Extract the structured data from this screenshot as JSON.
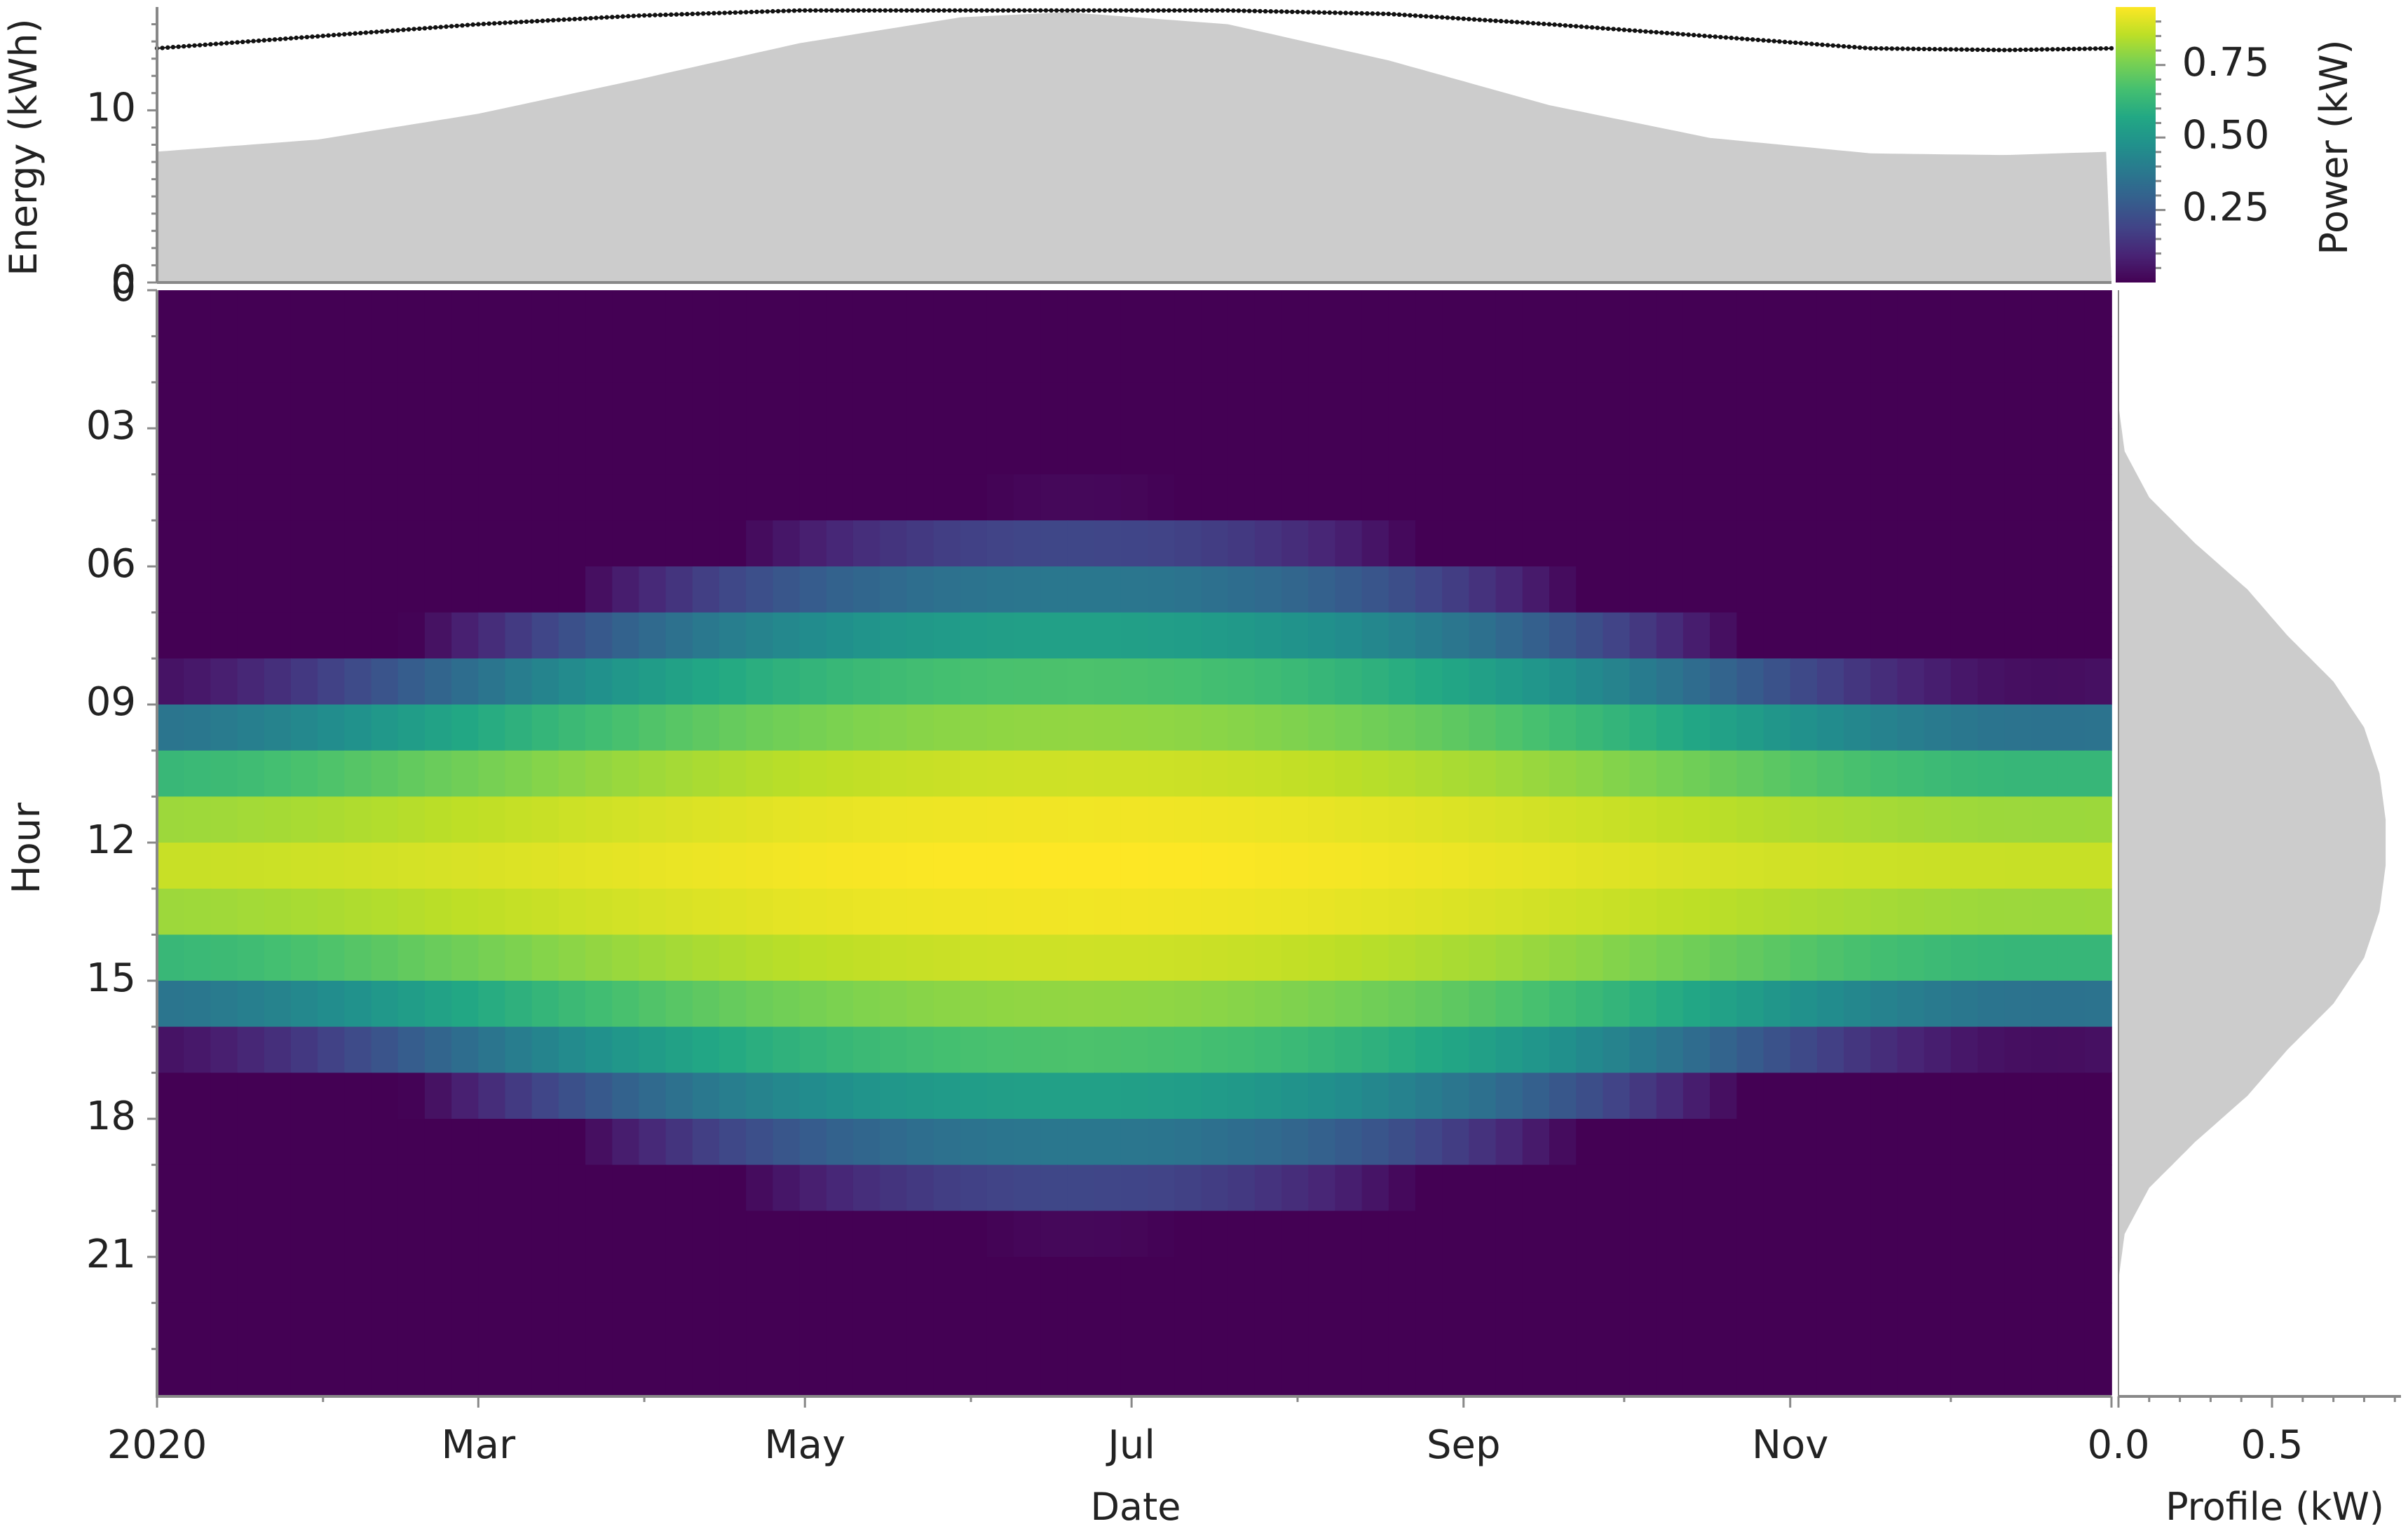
{
  "chart_data": [
    {
      "type": "heatmap",
      "title": "",
      "xlabel": "Date",
      "ylabel": "Hour",
      "x_ticks": [
        "2020",
        "Mar",
        "May",
        "Jul",
        "Sep",
        "Nov"
      ],
      "y_ticks": [
        "03",
        "06",
        "09",
        "12",
        "15",
        "18",
        "21"
      ],
      "y_ticks_top": "0",
      "x_range_days": [
        0,
        365
      ],
      "y_range_hours": [
        0,
        24
      ],
      "colormap": "viridis",
      "colorbar": {
        "label": "Power (kW)",
        "range": [
          0,
          0.95
        ],
        "ticks": [
          "0.25",
          "0.50",
          "0.75"
        ]
      },
      "hourly_profile_kw": [
        0.0,
        0.0,
        0.0,
        0.02,
        0.1,
        0.25,
        0.42,
        0.55,
        0.7,
        0.8,
        0.85,
        0.87,
        0.87,
        0.85,
        0.8,
        0.7,
        0.55,
        0.42,
        0.25,
        0.1,
        0.02,
        0.0,
        0.0,
        0.0
      ],
      "daylength_hours": {
        "winter": 8.2,
        "summer": 16.2
      }
    },
    {
      "type": "area",
      "title": "",
      "ylabel": "Energy (kWh)",
      "y_ticks": [
        "0",
        "10"
      ],
      "ylim": [
        0,
        16
      ],
      "x_range_days": [
        0,
        365
      ],
      "series": [
        {
          "name": "",
          "style": "filled",
          "color": "#cccccc",
          "x_day": [
            0,
            30,
            60,
            90,
            120,
            150,
            170,
            200,
            230,
            260,
            290,
            320,
            345,
            365
          ],
          "values": [
            7.6,
            8.3,
            9.8,
            11.8,
            13.9,
            15.4,
            15.7,
            15.0,
            12.9,
            10.3,
            8.4,
            7.5,
            7.4,
            7.6
          ]
        },
        {
          "name": "",
          "style": "dotted-line",
          "color": "#111111",
          "x_day": [
            0,
            30,
            60,
            90,
            120,
            150,
            170,
            200,
            230,
            260,
            290,
            320,
            345,
            365
          ],
          "values": [
            13.6,
            14.3,
            15.0,
            15.5,
            15.8,
            15.8,
            15.8,
            15.8,
            15.6,
            15.0,
            14.3,
            13.6,
            13.5,
            13.6
          ]
        }
      ]
    },
    {
      "type": "area",
      "title": "",
      "xlabel": "Profile (kW)",
      "x_ticks": [
        "0.0",
        "0.5"
      ],
      "xlim": [
        0,
        0.92
      ],
      "orientation": "horizontal",
      "color": "#cccccc",
      "values_by_hour": [
        0.0,
        0.0,
        0.0,
        0.02,
        0.1,
        0.25,
        0.42,
        0.55,
        0.7,
        0.8,
        0.85,
        0.87,
        0.87,
        0.85,
        0.8,
        0.7,
        0.55,
        0.42,
        0.25,
        0.1,
        0.02,
        0.0,
        0.0,
        0.0
      ]
    }
  ]
}
